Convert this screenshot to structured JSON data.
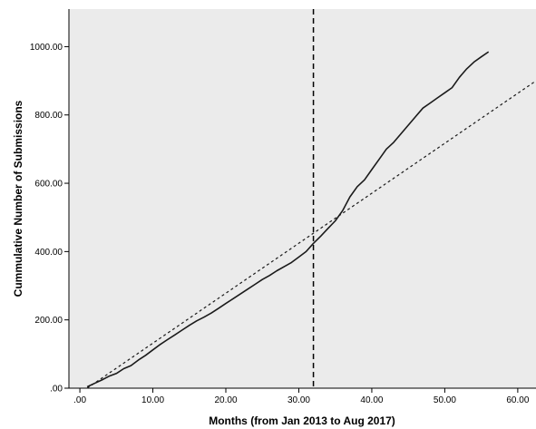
{
  "chart_data": {
    "type": "line",
    "title": "",
    "xlabel": "Months (from Jan 2013 to Aug 2017)",
    "ylabel": "Cummulative Number of Submissions",
    "xlim": [
      -1.5,
      62.5
    ],
    "ylim": [
      0,
      1110
    ],
    "x_ticks": [
      0,
      10,
      20,
      30,
      40,
      50,
      60
    ],
    "x_tick_labels": [
      ".00",
      "10.00",
      "20.00",
      "30.00",
      "40.00",
      "50.00",
      "60.00"
    ],
    "y_ticks": [
      0,
      200,
      400,
      600,
      800,
      1000
    ],
    "y_tick_labels": [
      ".00",
      "200.00",
      "400.00",
      "600.00",
      "800.00",
      "1000.00"
    ],
    "grid": false,
    "colors": {
      "plot_background": "#ebebeb",
      "line": "#1a1a1a"
    },
    "series": [
      {
        "style": "solid",
        "x": [
          1,
          2,
          3,
          4,
          5,
          6,
          7,
          8,
          9,
          10,
          11,
          12,
          13,
          14,
          15,
          16,
          17,
          18,
          19,
          20,
          21,
          22,
          23,
          24,
          25,
          26,
          27,
          28,
          29,
          30,
          31,
          32,
          33,
          34,
          35,
          36,
          37,
          38,
          39,
          40,
          41,
          42,
          43,
          44,
          45,
          46,
          47,
          48,
          49,
          50,
          51,
          52,
          53,
          54,
          55,
          56
        ],
        "y": [
          4,
          14,
          24,
          35,
          43,
          57,
          66,
          82,
          96,
          112,
          128,
          142,
          156,
          170,
          184,
          197,
          208,
          220,
          234,
          248,
          262,
          276,
          290,
          304,
          318,
          330,
          344,
          356,
          368,
          384,
          400,
          424,
          445,
          468,
          490,
          520,
          560,
          590,
          610,
          640,
          670,
          700,
          720,
          745,
          770,
          795,
          820,
          835,
          850,
          865,
          880,
          910,
          935,
          955,
          970,
          985
        ]
      },
      {
        "style": "dashed",
        "x": [
          1,
          62.5
        ],
        "y": [
          0,
          900
        ]
      }
    ],
    "reference_lines": [
      {
        "axis": "x",
        "value": 32,
        "style": "dashed"
      }
    ]
  }
}
